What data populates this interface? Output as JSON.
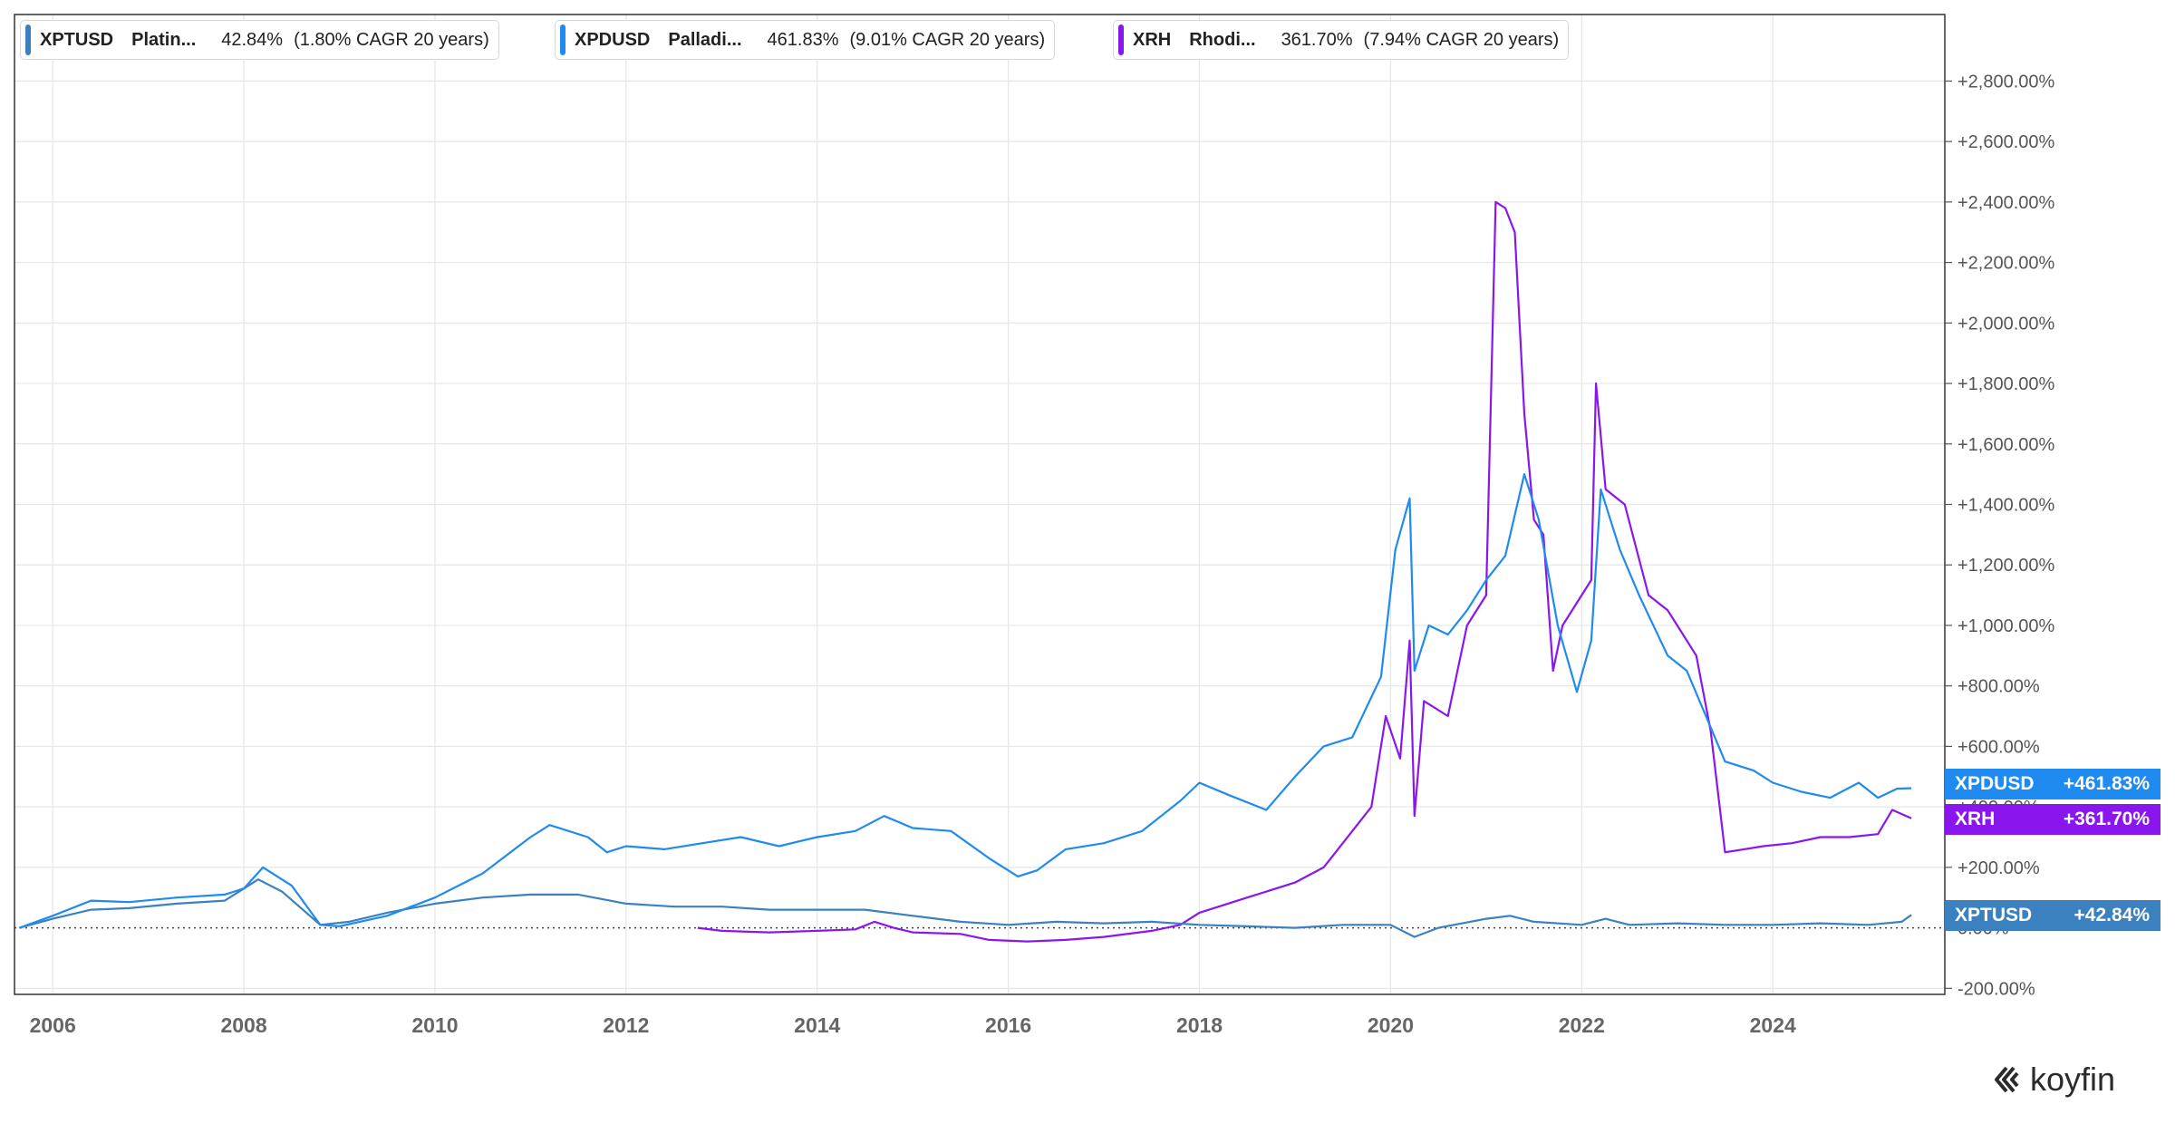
{
  "legend": [
    {
      "ticker": "XPTUSD",
      "name": "Platin...",
      "total": "42.84%",
      "cagr": "(1.80% CAGR 20 years)",
      "color": "#3b81c0"
    },
    {
      "ticker": "XPDUSD",
      "name": "Palladi...",
      "total": "461.83%",
      "cagr": "(9.01% CAGR 20 years)",
      "color": "#1f8bf0"
    },
    {
      "ticker": "XRH",
      "name": "Rhodi...",
      "total": "361.70%",
      "cagr": "(7.94% CAGR 20 years)",
      "color": "#8a16ee"
    }
  ],
  "price_tags": [
    {
      "ticker": "XPDUSD",
      "value": "+461.83%",
      "color": "#1f8bf0"
    },
    {
      "ticker": "XRH",
      "value": "+361.70%",
      "color": "#8a16ee"
    },
    {
      "ticker": "XPTUSD",
      "value": "+42.84%",
      "color": "#3b81c0"
    }
  ],
  "logo": {
    "text": "koyfin"
  },
  "chart_data": {
    "type": "line",
    "title": "",
    "xlabel": "",
    "ylabel": "",
    "xlim": [
      2005.6,
      2025.8
    ],
    "ylim": [
      -220,
      3020
    ],
    "x_ticks": [
      2006,
      2008,
      2010,
      2012,
      2014,
      2016,
      2018,
      2020,
      2022,
      2024
    ],
    "x_tick_labels": [
      "2006",
      "2008",
      "2010",
      "2012",
      "2014",
      "2016",
      "2018",
      "2020",
      "2022",
      "2024"
    ],
    "y_ticks": [
      -200,
      0,
      200,
      400,
      600,
      800,
      1000,
      1200,
      1400,
      1600,
      1800,
      2000,
      2200,
      2400,
      2600,
      2800
    ],
    "y_tick_labels": [
      "-200.00%",
      "0.00%",
      "+200.00%",
      "+400.00%",
      "+600.00%",
      "+800.00%",
      "+1,000.00%",
      "+1,200.00%",
      "+1,400.00%",
      "+1,600.00%",
      "+1,800.00%",
      "+2,000.00%",
      "+2,200.00%",
      "+2,400.00%",
      "+2,600.00%",
      "+2,800.00%"
    ],
    "baseline": 0,
    "grid": true,
    "legend_position": "top-left",
    "series": [
      {
        "name": "XPTUSD",
        "color": "#3b81c0",
        "points": [
          [
            2005.65,
            0
          ],
          [
            2006.0,
            30
          ],
          [
            2006.4,
            60
          ],
          [
            2006.8,
            65
          ],
          [
            2007.3,
            80
          ],
          [
            2007.8,
            90
          ],
          [
            2008.15,
            160
          ],
          [
            2008.4,
            120
          ],
          [
            2008.8,
            10
          ],
          [
            2009.1,
            20
          ],
          [
            2009.5,
            50
          ],
          [
            2010.0,
            80
          ],
          [
            2010.5,
            100
          ],
          [
            2011.0,
            110
          ],
          [
            2011.5,
            110
          ],
          [
            2012.0,
            80
          ],
          [
            2012.5,
            70
          ],
          [
            2013.0,
            70
          ],
          [
            2013.5,
            60
          ],
          [
            2014.0,
            60
          ],
          [
            2014.5,
            60
          ],
          [
            2015.0,
            40
          ],
          [
            2015.5,
            20
          ],
          [
            2016.0,
            10
          ],
          [
            2016.5,
            20
          ],
          [
            2017.0,
            15
          ],
          [
            2017.5,
            20
          ],
          [
            2018.0,
            10
          ],
          [
            2018.5,
            5
          ],
          [
            2019.0,
            0
          ],
          [
            2019.5,
            10
          ],
          [
            2020.0,
            10
          ],
          [
            2020.25,
            -30
          ],
          [
            2020.5,
            0
          ],
          [
            2021.0,
            30
          ],
          [
            2021.25,
            40
          ],
          [
            2021.5,
            20
          ],
          [
            2022.0,
            10
          ],
          [
            2022.25,
            30
          ],
          [
            2022.5,
            10
          ],
          [
            2023.0,
            15
          ],
          [
            2023.5,
            10
          ],
          [
            2024.0,
            10
          ],
          [
            2024.5,
            15
          ],
          [
            2025.0,
            10
          ],
          [
            2025.35,
            20
          ],
          [
            2025.45,
            43
          ]
        ]
      },
      {
        "name": "XPDUSD",
        "color": "#1f8bf0",
        "points": [
          [
            2005.65,
            0
          ],
          [
            2006.0,
            40
          ],
          [
            2006.4,
            90
          ],
          [
            2006.8,
            85
          ],
          [
            2007.3,
            100
          ],
          [
            2007.8,
            110
          ],
          [
            2008.0,
            130
          ],
          [
            2008.2,
            200
          ],
          [
            2008.5,
            140
          ],
          [
            2008.8,
            10
          ],
          [
            2009.0,
            5
          ],
          [
            2009.5,
            40
          ],
          [
            2010.0,
            100
          ],
          [
            2010.5,
            180
          ],
          [
            2011.0,
            300
          ],
          [
            2011.2,
            340
          ],
          [
            2011.6,
            300
          ],
          [
            2011.8,
            250
          ],
          [
            2012.0,
            270
          ],
          [
            2012.4,
            260
          ],
          [
            2012.8,
            280
          ],
          [
            2013.2,
            300
          ],
          [
            2013.6,
            270
          ],
          [
            2014.0,
            300
          ],
          [
            2014.4,
            320
          ],
          [
            2014.7,
            370
          ],
          [
            2015.0,
            330
          ],
          [
            2015.4,
            320
          ],
          [
            2015.8,
            230
          ],
          [
            2016.1,
            170
          ],
          [
            2016.3,
            190
          ],
          [
            2016.6,
            260
          ],
          [
            2017.0,
            280
          ],
          [
            2017.4,
            320
          ],
          [
            2017.8,
            420
          ],
          [
            2018.0,
            480
          ],
          [
            2018.3,
            440
          ],
          [
            2018.7,
            390
          ],
          [
            2019.0,
            500
          ],
          [
            2019.3,
            600
          ],
          [
            2019.6,
            630
          ],
          [
            2019.9,
            830
          ],
          [
            2020.05,
            1250
          ],
          [
            2020.2,
            1420
          ],
          [
            2020.25,
            850
          ],
          [
            2020.4,
            1000
          ],
          [
            2020.6,
            970
          ],
          [
            2020.8,
            1050
          ],
          [
            2021.0,
            1150
          ],
          [
            2021.2,
            1230
          ],
          [
            2021.4,
            1500
          ],
          [
            2021.55,
            1350
          ],
          [
            2021.75,
            1000
          ],
          [
            2021.95,
            780
          ],
          [
            2022.1,
            950
          ],
          [
            2022.2,
            1450
          ],
          [
            2022.4,
            1250
          ],
          [
            2022.6,
            1100
          ],
          [
            2022.9,
            900
          ],
          [
            2023.1,
            850
          ],
          [
            2023.3,
            700
          ],
          [
            2023.5,
            550
          ],
          [
            2023.8,
            520
          ],
          [
            2024.0,
            480
          ],
          [
            2024.3,
            450
          ],
          [
            2024.6,
            430
          ],
          [
            2024.9,
            480
          ],
          [
            2025.1,
            430
          ],
          [
            2025.3,
            460
          ],
          [
            2025.45,
            462
          ]
        ]
      },
      {
        "name": "XRH",
        "color": "#8a16ee",
        "points": [
          [
            2012.75,
            0
          ],
          [
            2013.0,
            -10
          ],
          [
            2013.5,
            -15
          ],
          [
            2014.0,
            -10
          ],
          [
            2014.4,
            -5
          ],
          [
            2014.6,
            20
          ],
          [
            2014.8,
            0
          ],
          [
            2015.0,
            -15
          ],
          [
            2015.5,
            -20
          ],
          [
            2015.8,
            -40
          ],
          [
            2016.2,
            -45
          ],
          [
            2016.6,
            -40
          ],
          [
            2017.0,
            -30
          ],
          [
            2017.5,
            -10
          ],
          [
            2017.8,
            10
          ],
          [
            2018.0,
            50
          ],
          [
            2018.5,
            100
          ],
          [
            2019.0,
            150
          ],
          [
            2019.3,
            200
          ],
          [
            2019.5,
            280
          ],
          [
            2019.8,
            400
          ],
          [
            2019.95,
            700
          ],
          [
            2020.1,
            560
          ],
          [
            2020.2,
            950
          ],
          [
            2020.25,
            370
          ],
          [
            2020.35,
            750
          ],
          [
            2020.6,
            700
          ],
          [
            2020.8,
            1000
          ],
          [
            2021.0,
            1100
          ],
          [
            2021.1,
            2400
          ],
          [
            2021.2,
            2380
          ],
          [
            2021.3,
            2300
          ],
          [
            2021.4,
            1700
          ],
          [
            2021.5,
            1350
          ],
          [
            2021.6,
            1300
          ],
          [
            2021.7,
            850
          ],
          [
            2021.8,
            1000
          ],
          [
            2022.0,
            1100
          ],
          [
            2022.1,
            1150
          ],
          [
            2022.15,
            1800
          ],
          [
            2022.25,
            1450
          ],
          [
            2022.45,
            1400
          ],
          [
            2022.7,
            1100
          ],
          [
            2022.9,
            1050
          ],
          [
            2023.0,
            1000
          ],
          [
            2023.2,
            900
          ],
          [
            2023.35,
            650
          ],
          [
            2023.5,
            250
          ],
          [
            2023.7,
            260
          ],
          [
            2023.9,
            270
          ],
          [
            2024.2,
            280
          ],
          [
            2024.5,
            300
          ],
          [
            2024.8,
            300
          ],
          [
            2025.1,
            310
          ],
          [
            2025.25,
            390
          ],
          [
            2025.45,
            362
          ]
        ]
      }
    ]
  }
}
